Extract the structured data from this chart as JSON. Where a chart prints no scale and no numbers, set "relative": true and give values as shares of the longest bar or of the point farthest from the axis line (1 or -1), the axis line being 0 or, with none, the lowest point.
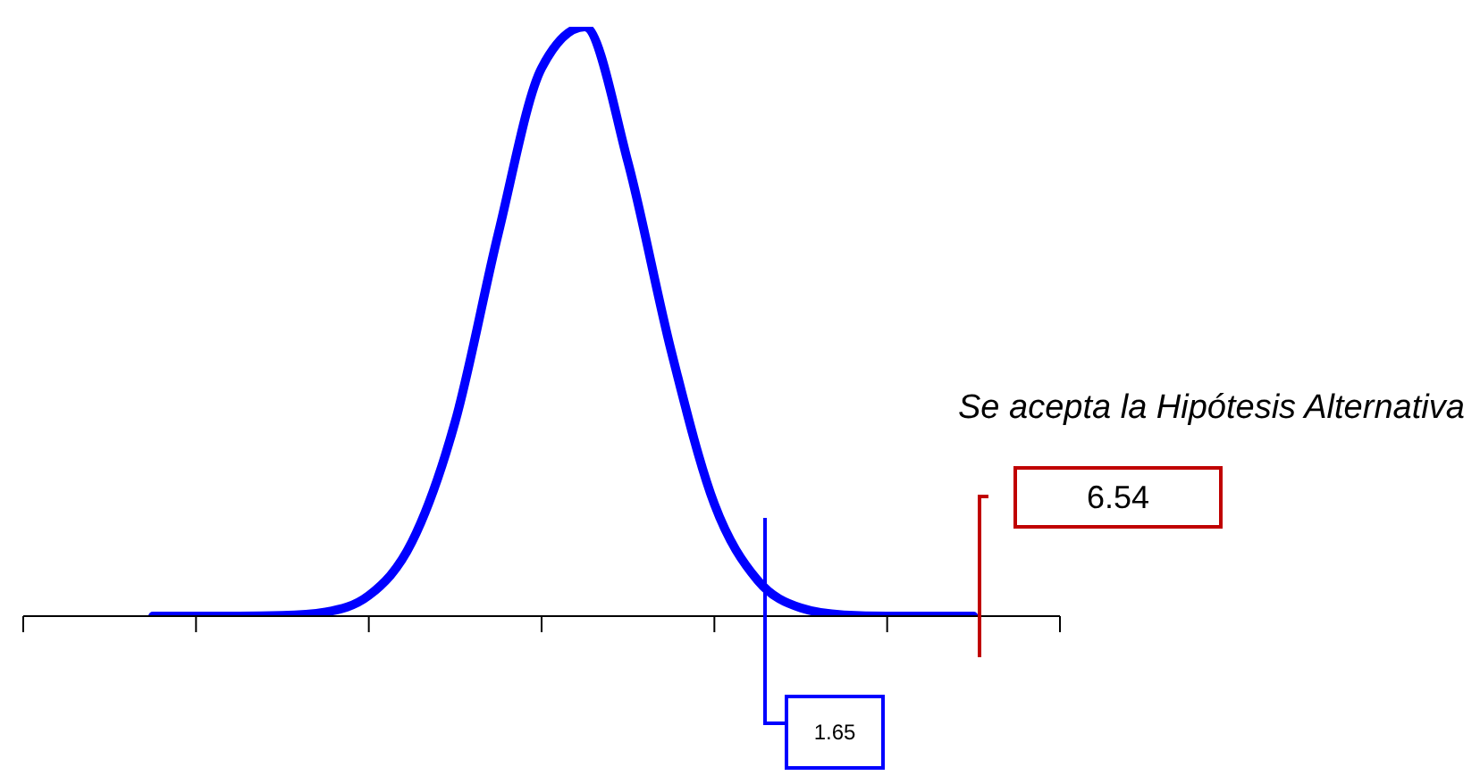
{
  "chart_data": {
    "type": "line",
    "relative": true,
    "categories": [
      null,
      null,
      null,
      null,
      null,
      null,
      null,
      null,
      null,
      null,
      null,
      null,
      null,
      null,
      null,
      null,
      null,
      null,
      null,
      null,
      null,
      null,
      null,
      null,
      null
    ],
    "series": [
      {
        "color": "#0000ff",
        "values": [
          null,
          null,
          null,
          0,
          0,
          0,
          0.001,
          0.007,
          0.035,
          0.126,
          0.33,
          0.65,
          0.93,
          1,
          0.77,
          0.45,
          0.19,
          0.061,
          0.014,
          0.002,
          0,
          0,
          0,
          null,
          null
        ]
      }
    ],
    "annotations": [
      "Se acepta la Hipótesis Alternativa",
      "1.65",
      "6.54"
    ],
    "marker": "none",
    "line_style": "solid",
    "grid": false,
    "legend": false
  }
}
